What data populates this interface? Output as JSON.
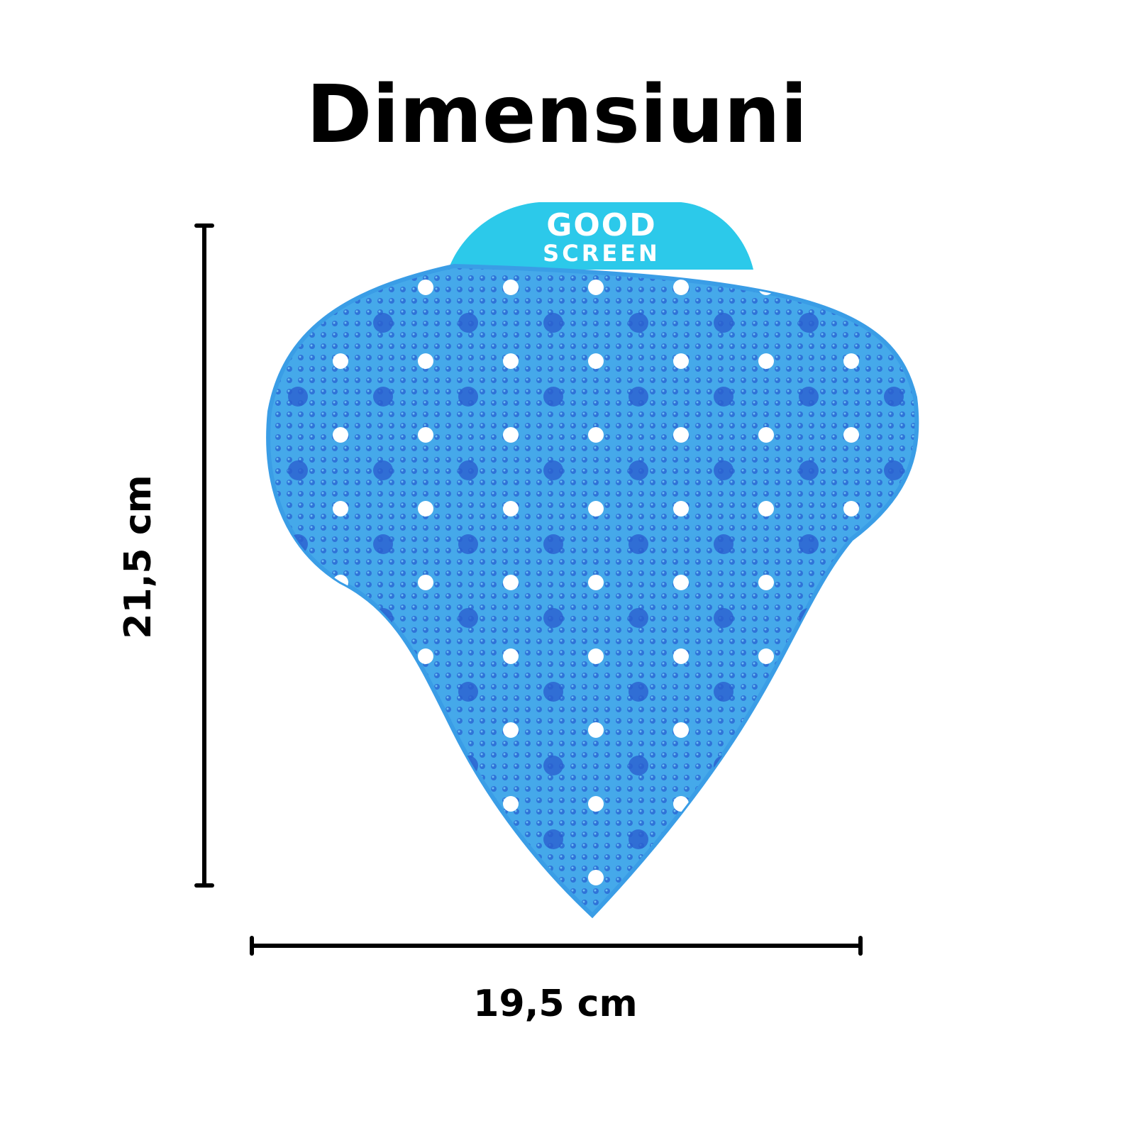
{
  "header": {
    "title": "Dimensiuni"
  },
  "product": {
    "logo": {
      "line1": "GOOD",
      "line2": "SCREEN"
    }
  },
  "dimensions": {
    "height": "21,5 cm",
    "width": "19,5 cm"
  }
}
